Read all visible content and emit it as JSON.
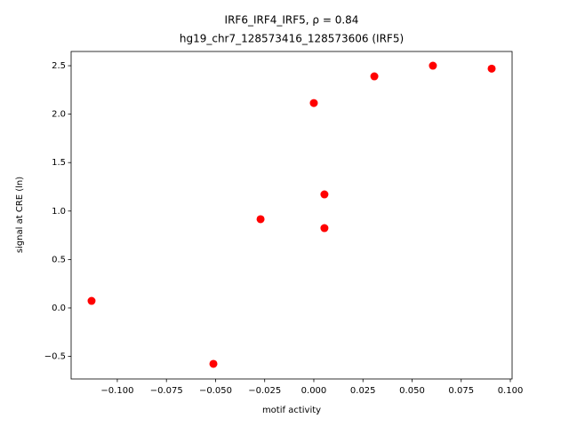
{
  "chart_data": {
    "type": "scatter",
    "title": "IRF6_IRF4_IRF5, ρ = 0.84",
    "subtitle": "hg19_chr7_128573416_128573606 (IRF5)",
    "x_label": "motif activity",
    "y_label": "signal at CRE (ln)",
    "color": "#ff0000",
    "x": [
      -0.1131,
      -0.0511,
      -0.0271,
      0.0,
      0.0054,
      0.0054,
      0.0308,
      0.0606,
      0.0905
    ],
    "values": [
      0.073,
      -0.577,
      0.916,
      2.115,
      1.172,
      0.824,
      2.39,
      2.5,
      2.47
    ],
    "xlim": [
      -0.1235,
      0.1009
    ],
    "ylim": [
      -0.733,
      2.647
    ],
    "xticks": [
      {
        "value": -0.1,
        "label": "−0.100"
      },
      {
        "value": -0.075,
        "label": "−0.075"
      },
      {
        "value": -0.05,
        "label": "−0.050"
      },
      {
        "value": -0.025,
        "label": "−0.025"
      },
      {
        "value": 0,
        "label": "0.000"
      },
      {
        "value": 0.025,
        "label": "0.025"
      },
      {
        "value": 0.05,
        "label": "0.050"
      },
      {
        "value": 0.075,
        "label": "0.075"
      },
      {
        "value": 0.1,
        "label": "0.100"
      }
    ],
    "yticks": [
      {
        "value": -0.5,
        "label": "−0.5"
      },
      {
        "value": 0,
        "label": "0.0"
      },
      0.5,
      {
        "value": 1,
        "label": "1.0"
      },
      1.5,
      {
        "value": 2,
        "label": "2.0"
      },
      2.5
    ]
  }
}
